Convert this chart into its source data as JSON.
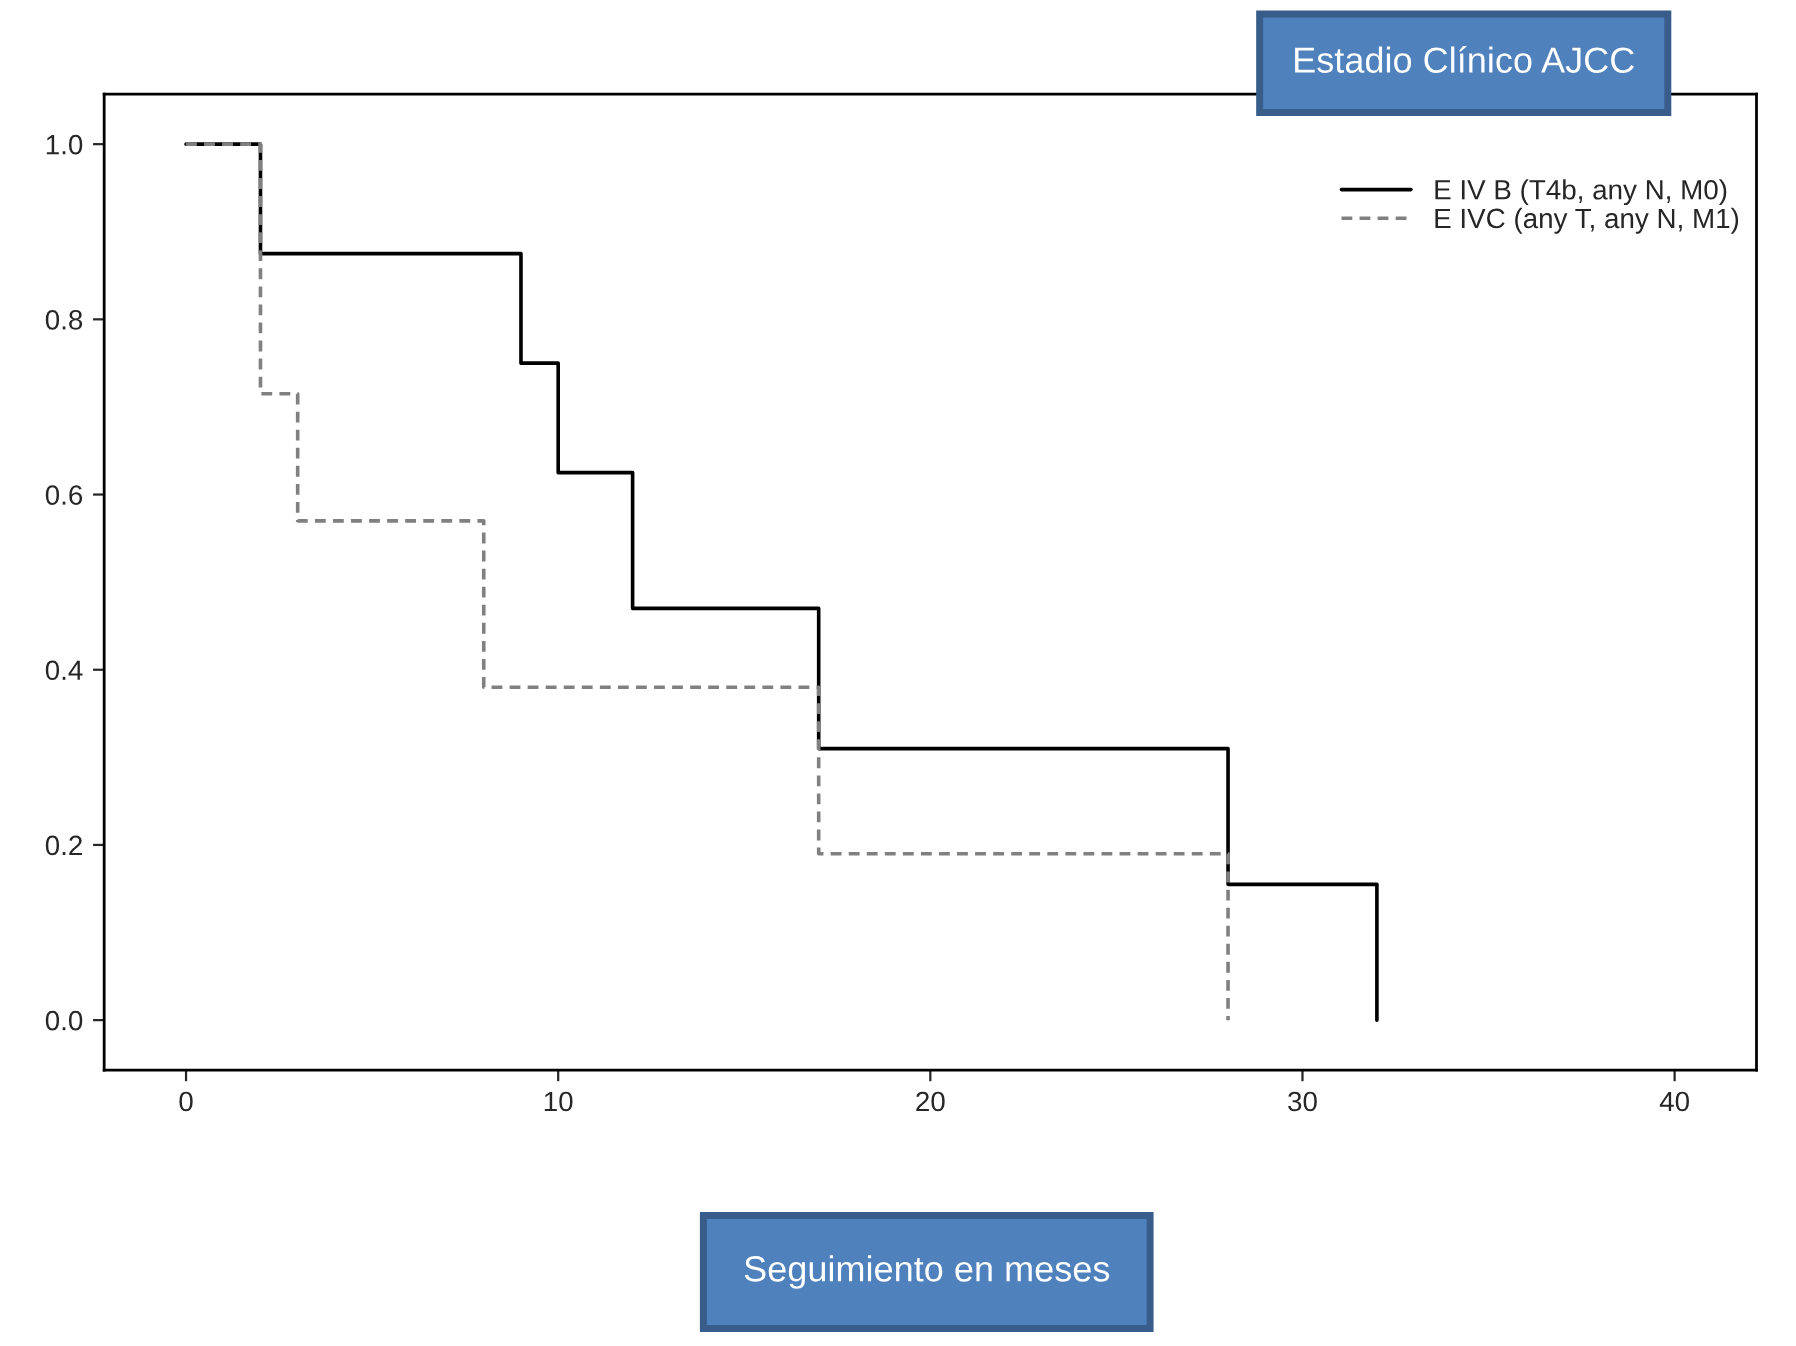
{
  "chart_data": {
    "type": "step",
    "xlabel": "Seguimiento en meses",
    "legend_title": "Estadio Clínico AJCC",
    "series": [
      {
        "name": "E IV B (T4b, any N, M0)",
        "color": "#000000",
        "line_style": "solid",
        "x": [
          0,
          2,
          9,
          10,
          12,
          17,
          28,
          32
        ],
        "values": [
          1.0,
          0.875,
          0.75,
          0.625,
          0.47,
          0.31,
          0.155,
          0.0
        ]
      },
      {
        "name": "E IVC (any T, any N, M1)",
        "color": "#808080",
        "line_style": "dashed",
        "x": [
          0,
          2,
          3,
          8,
          17,
          28
        ],
        "values": [
          1.0,
          0.715,
          0.57,
          0.38,
          0.19,
          0.0
        ]
      }
    ],
    "xlim": [
      -2.2,
      42.2
    ],
    "xticks": [
      0,
      10,
      20,
      30,
      40
    ],
    "ylim": [
      -0.057,
      1.057
    ],
    "yticks": [
      {
        "value": 0,
        "label": "0.0"
      },
      {
        "value": 0.2,
        "label": "0.2"
      },
      {
        "value": 0.4,
        "label": "0.4"
      },
      {
        "value": 0.6,
        "label": "0.6"
      },
      {
        "value": 0.8,
        "label": "0.8"
      },
      {
        "value": 1.0,
        "label": "1.0"
      }
    ],
    "grid": false,
    "legend": "top right"
  }
}
